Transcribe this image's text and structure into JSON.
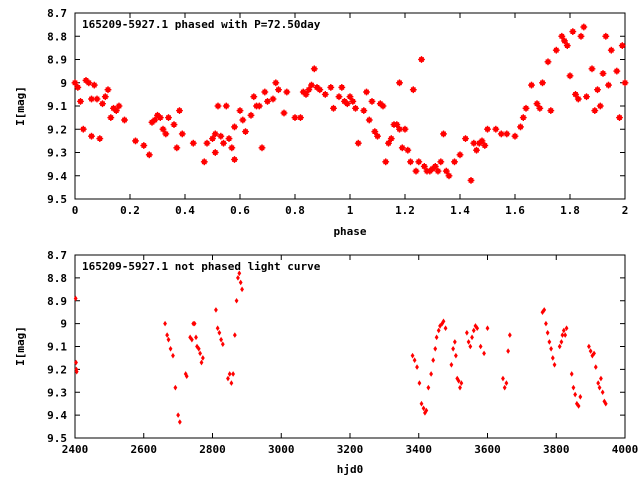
{
  "chart_data": [
    {
      "type": "scatter",
      "title": "165209-5927.1 phased with P=72.50day",
      "xlabel": "phase",
      "ylabel": "I[mag]",
      "xlim": [
        0,
        2
      ],
      "ylim": [
        9.5,
        8.7
      ],
      "y_inverted": true,
      "xticks": [
        "0",
        "0.2",
        "0.4",
        "0.6",
        "0.8",
        "1",
        "1.2",
        "1.4",
        "1.6",
        "1.8",
        "2"
      ],
      "yticks": [
        "8.7",
        "8.8",
        "8.9",
        "9",
        "9.1",
        "9.2",
        "9.3",
        "9.4",
        "9.5"
      ],
      "marker_color": "#ff0000",
      "marker": "star",
      "grid": false,
      "points": [
        [
          0.0,
          9.0
        ],
        [
          0.01,
          9.02
        ],
        [
          0.02,
          9.08
        ],
        [
          0.03,
          9.2
        ],
        [
          0.04,
          8.99
        ],
        [
          0.05,
          9.0
        ],
        [
          0.06,
          9.07
        ],
        [
          0.06,
          9.23
        ],
        [
          0.07,
          9.01
        ],
        [
          0.08,
          9.07
        ],
        [
          0.09,
          9.24
        ],
        [
          0.1,
          9.09
        ],
        [
          0.11,
          9.06
        ],
        [
          0.12,
          9.03
        ],
        [
          0.13,
          9.15
        ],
        [
          0.14,
          9.11
        ],
        [
          0.15,
          9.12
        ],
        [
          0.16,
          9.1
        ],
        [
          0.18,
          9.16
        ],
        [
          0.22,
          9.25
        ],
        [
          0.25,
          9.27
        ],
        [
          0.27,
          9.31
        ],
        [
          0.28,
          9.17
        ],
        [
          0.29,
          9.16
        ],
        [
          0.3,
          9.14
        ],
        [
          0.31,
          9.15
        ],
        [
          0.32,
          9.2
        ],
        [
          0.33,
          9.22
        ],
        [
          0.34,
          9.15
        ],
        [
          0.36,
          9.18
        ],
        [
          0.37,
          9.28
        ],
        [
          0.38,
          9.12
        ],
        [
          0.39,
          9.22
        ],
        [
          0.43,
          9.26
        ],
        [
          0.47,
          9.34
        ],
        [
          0.48,
          9.26
        ],
        [
          0.5,
          9.24
        ],
        [
          0.51,
          9.22
        ],
        [
          0.51,
          9.3
        ],
        [
          0.52,
          9.1
        ],
        [
          0.53,
          9.23
        ],
        [
          0.54,
          9.26
        ],
        [
          0.55,
          9.1
        ],
        [
          0.56,
          9.24
        ],
        [
          0.57,
          9.28
        ],
        [
          0.58,
          9.19
        ],
        [
          0.58,
          9.33
        ],
        [
          0.6,
          9.12
        ],
        [
          0.61,
          9.16
        ],
        [
          0.62,
          9.21
        ],
        [
          0.64,
          9.14
        ],
        [
          0.65,
          9.06
        ],
        [
          0.66,
          9.1
        ],
        [
          0.67,
          9.1
        ],
        [
          0.68,
          9.28
        ],
        [
          0.69,
          9.04
        ],
        [
          0.7,
          9.08
        ],
        [
          0.72,
          9.07
        ],
        [
          0.73,
          9.0
        ],
        [
          0.74,
          9.03
        ],
        [
          0.76,
          9.13
        ],
        [
          0.77,
          9.04
        ],
        [
          0.8,
          9.15
        ],
        [
          0.82,
          9.15
        ],
        [
          0.83,
          9.04
        ],
        [
          0.84,
          9.05
        ],
        [
          0.85,
          9.03
        ],
        [
          0.86,
          9.01
        ],
        [
          0.87,
          8.94
        ],
        [
          0.88,
          9.02
        ],
        [
          0.89,
          9.03
        ],
        [
          0.91,
          9.05
        ],
        [
          0.93,
          9.02
        ],
        [
          0.94,
          9.11
        ],
        [
          0.96,
          9.06
        ],
        [
          0.97,
          9.02
        ],
        [
          0.98,
          9.08
        ],
        [
          0.99,
          9.09
        ],
        [
          1.0,
          9.06
        ],
        [
          1.01,
          9.08
        ],
        [
          1.02,
          9.11
        ],
        [
          1.03,
          9.26
        ],
        [
          1.05,
          9.12
        ],
        [
          1.06,
          9.04
        ],
        [
          1.07,
          9.16
        ],
        [
          1.08,
          9.08
        ],
        [
          1.09,
          9.21
        ],
        [
          1.1,
          9.23
        ],
        [
          1.11,
          9.09
        ],
        [
          1.12,
          9.1
        ],
        [
          1.13,
          9.34
        ],
        [
          1.14,
          9.26
        ],
        [
          1.15,
          9.24
        ],
        [
          1.16,
          9.18
        ],
        [
          1.17,
          9.18
        ],
        [
          1.18,
          9.0
        ],
        [
          1.18,
          9.2
        ],
        [
          1.19,
          9.28
        ],
        [
          1.2,
          9.2
        ],
        [
          1.21,
          9.29
        ],
        [
          1.22,
          9.34
        ],
        [
          1.23,
          9.03
        ],
        [
          1.24,
          9.38
        ],
        [
          1.25,
          9.34
        ],
        [
          1.26,
          8.9
        ],
        [
          1.27,
          9.36
        ],
        [
          1.28,
          9.38
        ],
        [
          1.29,
          9.38
        ],
        [
          1.3,
          9.37
        ],
        [
          1.31,
          9.36
        ],
        [
          1.32,
          9.38
        ],
        [
          1.33,
          9.34
        ],
        [
          1.34,
          9.22
        ],
        [
          1.35,
          9.38
        ],
        [
          1.36,
          9.4
        ],
        [
          1.38,
          9.34
        ],
        [
          1.4,
          9.31
        ],
        [
          1.42,
          9.24
        ],
        [
          1.44,
          9.42
        ],
        [
          1.45,
          9.26
        ],
        [
          1.46,
          9.29
        ],
        [
          1.47,
          9.26
        ],
        [
          1.48,
          9.25
        ],
        [
          1.49,
          9.27
        ],
        [
          1.5,
          9.2
        ],
        [
          1.53,
          9.2
        ],
        [
          1.55,
          9.22
        ],
        [
          1.57,
          9.22
        ],
        [
          1.6,
          9.23
        ],
        [
          1.62,
          9.19
        ],
        [
          1.63,
          9.15
        ],
        [
          1.64,
          9.11
        ],
        [
          1.66,
          9.01
        ],
        [
          1.68,
          9.09
        ],
        [
          1.69,
          9.11
        ],
        [
          1.7,
          9.0
        ],
        [
          1.72,
          8.91
        ],
        [
          1.73,
          9.12
        ],
        [
          1.75,
          8.86
        ],
        [
          1.77,
          8.8
        ],
        [
          1.78,
          8.82
        ],
        [
          1.79,
          8.84
        ],
        [
          1.8,
          8.97
        ],
        [
          1.81,
          8.78
        ],
        [
          1.82,
          9.05
        ],
        [
          1.83,
          9.07
        ],
        [
          1.84,
          8.8
        ],
        [
          1.85,
          8.76
        ],
        [
          1.86,
          9.06
        ],
        [
          1.88,
          8.94
        ],
        [
          1.89,
          9.12
        ],
        [
          1.9,
          9.03
        ],
        [
          1.91,
          9.1
        ],
        [
          1.92,
          8.96
        ],
        [
          1.93,
          8.8
        ],
        [
          1.94,
          9.01
        ],
        [
          1.95,
          8.86
        ],
        [
          1.97,
          8.95
        ],
        [
          1.98,
          9.15
        ],
        [
          1.99,
          8.84
        ],
        [
          2.0,
          9.0
        ]
      ]
    },
    {
      "type": "scatter",
      "title": "165209-5927.1 not phased light curve",
      "xlabel": "hjd0",
      "ylabel": "I[mag]",
      "xlim": [
        2400,
        4000
      ],
      "ylim": [
        9.5,
        8.7
      ],
      "y_inverted": true,
      "xticks": [
        "2400",
        "2600",
        "2800",
        "3000",
        "3200",
        "3400",
        "3600",
        "3800",
        "4000"
      ],
      "yticks": [
        "8.7",
        "8.8",
        "8.9",
        "9",
        "9.1",
        "9.2",
        "9.3",
        "9.4",
        "9.5"
      ],
      "marker_color": "#ff0000",
      "marker": "diamond",
      "grid": false,
      "points": [
        [
          2402,
          8.89
        ],
        [
          2403,
          9.17
        ],
        [
          2404,
          9.2
        ],
        [
          2405,
          9.21
        ],
        [
          2662,
          9.0
        ],
        [
          2668,
          9.05
        ],
        [
          2672,
          9.07
        ],
        [
          2678,
          9.11
        ],
        [
          2685,
          9.14
        ],
        [
          2692,
          9.28
        ],
        [
          2700,
          9.4
        ],
        [
          2705,
          9.43
        ],
        [
          2722,
          9.22
        ],
        [
          2725,
          9.23
        ],
        [
          2735,
          9.06
        ],
        [
          2740,
          9.07
        ],
        [
          2744,
          9.0
        ],
        [
          2748,
          9.0
        ],
        [
          2752,
          9.06
        ],
        [
          2755,
          9.1
        ],
        [
          2760,
          9.11
        ],
        [
          2764,
          9.13
        ],
        [
          2768,
          9.17
        ],
        [
          2772,
          9.15
        ],
        [
          2810,
          8.94
        ],
        [
          2815,
          9.02
        ],
        [
          2820,
          9.04
        ],
        [
          2825,
          9.07
        ],
        [
          2830,
          9.09
        ],
        [
          2845,
          9.24
        ],
        [
          2850,
          9.22
        ],
        [
          2855,
          9.26
        ],
        [
          2860,
          9.22
        ],
        [
          2865,
          9.05
        ],
        [
          2870,
          8.9
        ],
        [
          2874,
          8.8
        ],
        [
          2878,
          8.78
        ],
        [
          2882,
          8.82
        ],
        [
          2886,
          8.85
        ],
        [
          3382,
          9.14
        ],
        [
          3388,
          9.16
        ],
        [
          3395,
          9.19
        ],
        [
          3402,
          9.26
        ],
        [
          3408,
          9.35
        ],
        [
          3414,
          9.37
        ],
        [
          3418,
          9.39
        ],
        [
          3422,
          9.38
        ],
        [
          3428,
          9.28
        ],
        [
          3436,
          9.22
        ],
        [
          3442,
          9.16
        ],
        [
          3448,
          9.11
        ],
        [
          3452,
          9.06
        ],
        [
          3458,
          9.03
        ],
        [
          3462,
          9.01
        ],
        [
          3468,
          9.0
        ],
        [
          3472,
          8.99
        ],
        [
          3478,
          9.02
        ],
        [
          3495,
          9.18
        ],
        [
          3500,
          9.11
        ],
        [
          3505,
          9.08
        ],
        [
          3508,
          9.14
        ],
        [
          3512,
          9.24
        ],
        [
          3516,
          9.25
        ],
        [
          3520,
          9.28
        ],
        [
          3524,
          9.26
        ],
        [
          3540,
          9.04
        ],
        [
          3545,
          9.08
        ],
        [
          3550,
          9.1
        ],
        [
          3555,
          9.06
        ],
        [
          3560,
          9.03
        ],
        [
          3565,
          9.01
        ],
        [
          3570,
          9.02
        ],
        [
          3580,
          9.1
        ],
        [
          3590,
          9.13
        ],
        [
          3600,
          9.02
        ],
        [
          3645,
          9.24
        ],
        [
          3650,
          9.28
        ],
        [
          3655,
          9.26
        ],
        [
          3660,
          9.12
        ],
        [
          3665,
          9.05
        ],
        [
          3760,
          8.95
        ],
        [
          3765,
          8.94
        ],
        [
          3770,
          9.0
        ],
        [
          3775,
          9.04
        ],
        [
          3780,
          9.08
        ],
        [
          3785,
          9.11
        ],
        [
          3790,
          9.15
        ],
        [
          3795,
          9.18
        ],
        [
          3810,
          9.1
        ],
        [
          3815,
          9.08
        ],
        [
          3818,
          9.05
        ],
        [
          3822,
          9.03
        ],
        [
          3826,
          9.05
        ],
        [
          3830,
          9.02
        ],
        [
          3845,
          9.22
        ],
        [
          3850,
          9.28
        ],
        [
          3855,
          9.31
        ],
        [
          3860,
          9.35
        ],
        [
          3865,
          9.36
        ],
        [
          3870,
          9.32
        ],
        [
          3895,
          9.1
        ],
        [
          3900,
          9.12
        ],
        [
          3905,
          9.14
        ],
        [
          3910,
          9.13
        ],
        [
          3915,
          9.19
        ],
        [
          3922,
          9.26
        ],
        [
          3926,
          9.28
        ],
        [
          3930,
          9.24
        ],
        [
          3935,
          9.3
        ],
        [
          3940,
          9.34
        ],
        [
          3944,
          9.35
        ]
      ]
    }
  ]
}
